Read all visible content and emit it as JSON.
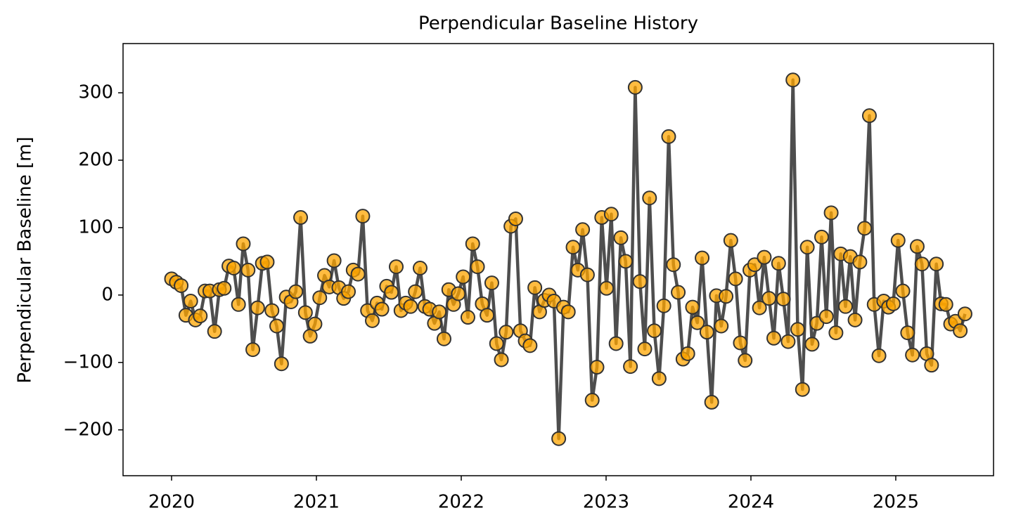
{
  "chart_data": {
    "type": "line",
    "title": "Perpendicular Baseline History",
    "ylabel": "Perpendicular Baseline [m]",
    "x": [
      2020.0,
      2020.033,
      2020.066,
      2020.099,
      2020.132,
      2020.165,
      2020.198,
      2020.231,
      2020.264,
      2020.297,
      2020.33,
      2020.363,
      2020.396,
      2020.429,
      2020.462,
      2020.495,
      2020.528,
      2020.561,
      2020.594,
      2020.627,
      2020.66,
      2020.693,
      2020.726,
      2020.759,
      2020.792,
      2020.825,
      2020.858,
      2020.891,
      2020.924,
      2020.957,
      2020.99,
      2021.023,
      2021.056,
      2021.089,
      2021.122,
      2021.155,
      2021.188,
      2021.221,
      2021.254,
      2021.287,
      2021.32,
      2021.353,
      2021.386,
      2021.419,
      2021.452,
      2021.485,
      2021.518,
      2021.551,
      2021.584,
      2021.617,
      2021.65,
      2021.683,
      2021.716,
      2021.749,
      2021.782,
      2021.815,
      2021.848,
      2021.881,
      2021.914,
      2021.947,
      2021.98,
      2022.013,
      2022.046,
      2022.079,
      2022.112,
      2022.145,
      2022.178,
      2022.211,
      2022.244,
      2022.277,
      2022.31,
      2022.343,
      2022.376,
      2022.409,
      2022.442,
      2022.475,
      2022.508,
      2022.541,
      2022.574,
      2022.607,
      2022.64,
      2022.673,
      2022.706,
      2022.739,
      2022.772,
      2022.805,
      2022.838,
      2022.871,
      2022.904,
      2022.937,
      2022.97,
      2023.003,
      2023.036,
      2023.069,
      2023.102,
      2023.135,
      2023.168,
      2023.201,
      2023.234,
      2023.267,
      2023.3,
      2023.333,
      2023.366,
      2023.399,
      2023.432,
      2023.465,
      2023.498,
      2023.531,
      2023.564,
      2023.597,
      2023.63,
      2023.663,
      2023.696,
      2023.729,
      2023.762,
      2023.795,
      2023.828,
      2023.861,
      2023.894,
      2023.927,
      2023.96,
      2023.993,
      2024.026,
      2024.059,
      2024.092,
      2024.125,
      2024.158,
      2024.191,
      2024.224,
      2024.257,
      2024.29,
      2024.323,
      2024.356,
      2024.389,
      2024.422,
      2024.455,
      2024.488,
      2024.521,
      2024.554,
      2024.587,
      2024.62,
      2024.653,
      2024.686,
      2024.719,
      2024.752,
      2024.785,
      2024.818,
      2024.851,
      2024.884,
      2024.917,
      2024.95,
      2024.983,
      2025.016,
      2025.049,
      2025.082,
      2025.115,
      2025.148,
      2025.181,
      2025.214,
      2025.247,
      2025.28,
      2025.313,
      2025.346,
      2025.379,
      2025.412,
      2025.445,
      2025.478
    ],
    "values": [
      24,
      19,
      14,
      -30,
      -9,
      -37,
      -31,
      6,
      6,
      -54,
      8,
      10,
      43,
      40,
      -14,
      76,
      37,
      -81,
      -19,
      47,
      49,
      -23,
      -46,
      -102,
      -3,
      -10,
      5,
      115,
      -26,
      -61,
      -43,
      -4,
      29,
      12,
      51,
      11,
      -5,
      5,
      37,
      31,
      117,
      -23,
      -38,
      -12,
      -21,
      13,
      4,
      42,
      -23,
      -12,
      -17,
      5,
      40,
      -17,
      -21,
      -42,
      -25,
      -65,
      8,
      -14,
      2,
      27,
      -33,
      76,
      42,
      -13,
      -30,
      18,
      -72,
      -96,
      -55,
      102,
      113,
      -53,
      -68,
      -75,
      11,
      -25,
      -8,
      0,
      -9,
      -213,
      -18,
      -25,
      71,
      37,
      97,
      30,
      -156,
      -107,
      115,
      10,
      120,
      -72,
      85,
      50,
      -106,
      308,
      20,
      -80,
      144,
      -53,
      -124,
      -16,
      235,
      45,
      4,
      -95,
      -87,
      -18,
      -41,
      55,
      -55,
      -159,
      -1,
      -46,
      -2,
      81,
      24,
      -71,
      -97,
      37,
      45,
      -19,
      56,
      -5,
      -64,
      47,
      -6,
      -69,
      319,
      -51,
      -140,
      71,
      -73,
      -42,
      86,
      -32,
      122,
      -56,
      61,
      -17,
      57,
      -37,
      49,
      99,
      266,
      -14,
      -90,
      -9,
      -18,
      -13,
      81,
      6,
      -56,
      -89,
      72,
      46,
      -87,
      -104,
      46,
      -13,
      -14,
      -43,
      -39,
      -53,
      -28
    ],
    "line_color": "#444444",
    "marker_color": "#ffa500",
    "xlim": [
      2019.665,
      2025.675
    ],
    "xticks": [
      2020,
      2021,
      2022,
      2023,
      2024,
      2025
    ],
    "ylim": [
      -268,
      373
    ],
    "yticks": [
      {
        "value": -200,
        "label": "−200"
      },
      {
        "value": -100,
        "label": "−100"
      },
      0,
      100,
      200,
      300
    ]
  }
}
